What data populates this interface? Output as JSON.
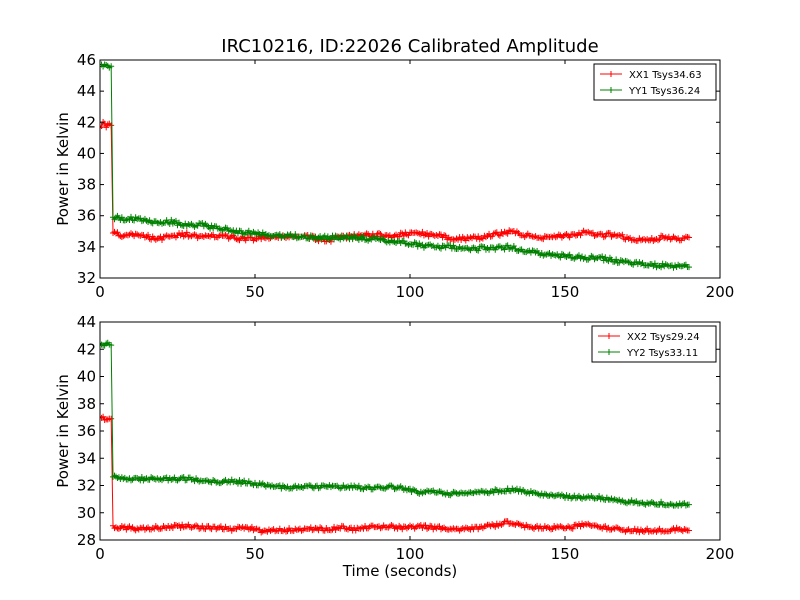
{
  "title": "IRC10216, ID:22026 Calibrated Amplitude",
  "colors": {
    "XX": "#ff0000",
    "YY": "#008000"
  },
  "chart_data": [
    {
      "type": "line",
      "ylabel": "Power in Kelvin",
      "xlabel": "",
      "xlim": [
        0,
        200
      ],
      "ylim": [
        32,
        46
      ],
      "xticks": [
        0,
        50,
        100,
        150,
        200
      ],
      "yticks": [
        32,
        34,
        36,
        38,
        40,
        42,
        44,
        46
      ],
      "legend_position": "top-right",
      "series": [
        {
          "name": "XX1 Tsys34.63",
          "color": "#ff0000",
          "points": [
            [
              0,
              41.8
            ],
            [
              1,
              41.9
            ],
            [
              2,
              41.8
            ],
            [
              3,
              41.9
            ],
            [
              3.6,
              41.8
            ],
            [
              4.2,
              34.9
            ],
            [
              8,
              34.7
            ],
            [
              13,
              34.8
            ],
            [
              18,
              34.5
            ],
            [
              23,
              34.7
            ],
            [
              28,
              34.8
            ],
            [
              33,
              34.6
            ],
            [
              38,
              34.7
            ],
            [
              43,
              34.6
            ],
            [
              48,
              34.5
            ],
            [
              53,
              34.6
            ],
            [
              58,
              34.6
            ],
            [
              63,
              34.7
            ],
            [
              68,
              34.6
            ],
            [
              73,
              34.4
            ],
            [
              78,
              34.6
            ],
            [
              83,
              34.7
            ],
            [
              88,
              34.8
            ],
            [
              93,
              34.7
            ],
            [
              98,
              34.8
            ],
            [
              103,
              34.9
            ],
            [
              108,
              34.7
            ],
            [
              113,
              34.6
            ],
            [
              118,
              34.5
            ],
            [
              123,
              34.6
            ],
            [
              128,
              34.8
            ],
            [
              132,
              35.0
            ],
            [
              136,
              34.8
            ],
            [
              141,
              34.6
            ],
            [
              146,
              34.7
            ],
            [
              151,
              34.7
            ],
            [
              156,
              34.9
            ],
            [
              161,
              34.7
            ],
            [
              166,
              34.8
            ],
            [
              171,
              34.5
            ],
            [
              176,
              34.4
            ],
            [
              181,
              34.6
            ],
            [
              186,
              34.5
            ],
            [
              190,
              34.6
            ]
          ]
        },
        {
          "name": "YY1 Tsys36.24",
          "color": "#008000",
          "points": [
            [
              0,
              45.7
            ],
            [
              1,
              45.6
            ],
            [
              2,
              45.7
            ],
            [
              3,
              45.6
            ],
            [
              3.6,
              45.6
            ],
            [
              4.2,
              35.9
            ],
            [
              8,
              35.8
            ],
            [
              13,
              35.8
            ],
            [
              18,
              35.6
            ],
            [
              23,
              35.6
            ],
            [
              28,
              35.4
            ],
            [
              33,
              35.4
            ],
            [
              38,
              35.2
            ],
            [
              43,
              35.0
            ],
            [
              48,
              34.9
            ],
            [
              53,
              34.8
            ],
            [
              58,
              34.7
            ],
            [
              63,
              34.7
            ],
            [
              68,
              34.6
            ],
            [
              73,
              34.6
            ],
            [
              78,
              34.6
            ],
            [
              83,
              34.6
            ],
            [
              88,
              34.5
            ],
            [
              93,
              34.4
            ],
            [
              98,
              34.3
            ],
            [
              103,
              34.1
            ],
            [
              108,
              34.0
            ],
            [
              113,
              34.0
            ],
            [
              118,
              33.9
            ],
            [
              123,
              33.9
            ],
            [
              128,
              33.9
            ],
            [
              132,
              34.0
            ],
            [
              136,
              33.8
            ],
            [
              141,
              33.6
            ],
            [
              146,
              33.5
            ],
            [
              151,
              33.4
            ],
            [
              156,
              33.3
            ],
            [
              161,
              33.3
            ],
            [
              166,
              33.1
            ],
            [
              171,
              32.9
            ],
            [
              176,
              32.9
            ],
            [
              181,
              32.8
            ],
            [
              186,
              32.8
            ],
            [
              190,
              32.7
            ]
          ]
        }
      ]
    },
    {
      "type": "line",
      "ylabel": "Power in Kelvin",
      "xlabel": "Time (seconds)",
      "xlim": [
        0,
        200
      ],
      "ylim": [
        28,
        44
      ],
      "xticks": [
        0,
        50,
        100,
        150,
        200
      ],
      "yticks": [
        28,
        30,
        32,
        34,
        36,
        38,
        40,
        42,
        44
      ],
      "legend_position": "top-right",
      "series": [
        {
          "name": "XX2 Tsys29.24",
          "color": "#ff0000",
          "points": [
            [
              0,
              36.9
            ],
            [
              1,
              37.0
            ],
            [
              2,
              36.9
            ],
            [
              3,
              37.0
            ],
            [
              3.6,
              36.9
            ],
            [
              4.2,
              29.0
            ],
            [
              8,
              28.9
            ],
            [
              13,
              28.8
            ],
            [
              18,
              28.9
            ],
            [
              23,
              29.0
            ],
            [
              28,
              29.0
            ],
            [
              33,
              28.9
            ],
            [
              38,
              28.9
            ],
            [
              43,
              28.8
            ],
            [
              48,
              28.9
            ],
            [
              53,
              28.6
            ],
            [
              58,
              28.7
            ],
            [
              63,
              28.8
            ],
            [
              68,
              28.8
            ],
            [
              73,
              28.8
            ],
            [
              78,
              28.9
            ],
            [
              83,
              28.8
            ],
            [
              88,
              29.0
            ],
            [
              93,
              29.0
            ],
            [
              98,
              28.9
            ],
            [
              103,
              29.0
            ],
            [
              108,
              28.9
            ],
            [
              113,
              28.8
            ],
            [
              118,
              28.8
            ],
            [
              123,
              28.9
            ],
            [
              128,
              29.1
            ],
            [
              132,
              29.3
            ],
            [
              136,
              29.1
            ],
            [
              141,
              28.9
            ],
            [
              146,
              28.9
            ],
            [
              151,
              28.9
            ],
            [
              156,
              29.1
            ],
            [
              161,
              29.0
            ],
            [
              166,
              28.8
            ],
            [
              171,
              28.7
            ],
            [
              176,
              28.7
            ],
            [
              181,
              28.7
            ],
            [
              186,
              28.8
            ],
            [
              190,
              28.7
            ]
          ]
        },
        {
          "name": "YY2 Tsys33.11",
          "color": "#008000",
          "points": [
            [
              0,
              42.4
            ],
            [
              1,
              42.3
            ],
            [
              2,
              42.4
            ],
            [
              3,
              42.3
            ],
            [
              3.6,
              42.3
            ],
            [
              4.2,
              32.6
            ],
            [
              8,
              32.5
            ],
            [
              13,
              32.5
            ],
            [
              18,
              32.5
            ],
            [
              23,
              32.5
            ],
            [
              28,
              32.5
            ],
            [
              33,
              32.4
            ],
            [
              38,
              32.3
            ],
            [
              43,
              32.3
            ],
            [
              48,
              32.2
            ],
            [
              53,
              32.0
            ],
            [
              58,
              31.9
            ],
            [
              63,
              31.9
            ],
            [
              68,
              31.9
            ],
            [
              73,
              31.9
            ],
            [
              78,
              31.9
            ],
            [
              83,
              31.9
            ],
            [
              88,
              31.8
            ],
            [
              93,
              31.9
            ],
            [
              98,
              31.8
            ],
            [
              103,
              31.5
            ],
            [
              108,
              31.5
            ],
            [
              113,
              31.4
            ],
            [
              118,
              31.4
            ],
            [
              123,
              31.5
            ],
            [
              128,
              31.6
            ],
            [
              132,
              31.7
            ],
            [
              136,
              31.6
            ],
            [
              141,
              31.4
            ],
            [
              146,
              31.3
            ],
            [
              151,
              31.2
            ],
            [
              156,
              31.1
            ],
            [
              161,
              31.1
            ],
            [
              166,
              31.0
            ],
            [
              171,
              30.8
            ],
            [
              176,
              30.7
            ],
            [
              181,
              30.7
            ],
            [
              186,
              30.6
            ],
            [
              190,
              30.6
            ]
          ]
        }
      ]
    }
  ]
}
